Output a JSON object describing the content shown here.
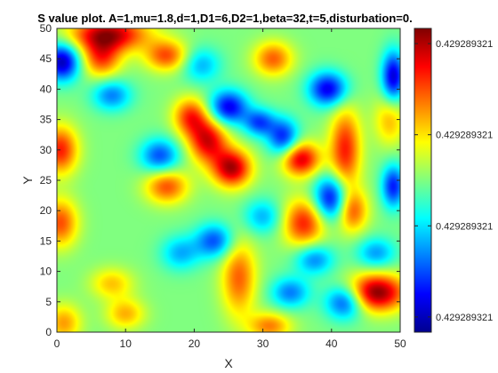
{
  "chart_data": {
    "type": "heatmap",
    "title": "S value plot. A=1,mu=1.8,d=1,D1=6,D2=1,beta=32,t=5,disturbation=0.",
    "xlabel": "X",
    "ylabel": "Y",
    "xlim": [
      0,
      50
    ],
    "ylim": [
      0,
      50
    ],
    "xticks": [
      0,
      10,
      20,
      30,
      40,
      50
    ],
    "yticks": [
      0,
      5,
      10,
      15,
      20,
      25,
      30,
      35,
      40,
      45,
      50
    ],
    "colormap": "jet",
    "grid": false,
    "colorbar": {
      "location": "right",
      "tick_labels": [
        "0.429289321",
        "0.429289321",
        "0.429289321",
        "0.429289321"
      ],
      "tick_levels": [
        0.95,
        0.65,
        0.35,
        0.05
      ]
    },
    "features": [
      {
        "x": 46.5,
        "y": 6.5,
        "level": 1.0,
        "sx": 3.0,
        "sy": 2.2
      },
      {
        "x": 25.5,
        "y": 27.0,
        "level": 0.95,
        "sx": 2.0,
        "sy": 2.2
      },
      {
        "x": 22.0,
        "y": 31.5,
        "level": 0.9,
        "sx": 2.0,
        "sy": 2.6
      },
      {
        "x": 19.5,
        "y": 35.5,
        "level": 0.82,
        "sx": 1.8,
        "sy": 2.2
      },
      {
        "x": 35.5,
        "y": 28.5,
        "level": 0.92,
        "sx": 2.0,
        "sy": 2.0
      },
      {
        "x": 42.0,
        "y": 30.0,
        "level": 0.85,
        "sx": 1.6,
        "sy": 4.8
      },
      {
        "x": 43.0,
        "y": 20.0,
        "level": 0.8,
        "sx": 1.6,
        "sy": 2.5
      },
      {
        "x": 36.0,
        "y": 18.0,
        "level": 0.85,
        "sx": 2.2,
        "sy": 2.8
      },
      {
        "x": 7.5,
        "y": 49.0,
        "level": 0.95,
        "sx": 4.0,
        "sy": 2.0
      },
      {
        "x": 0.5,
        "y": 30.0,
        "level": 0.85,
        "sx": 1.8,
        "sy": 2.8
      },
      {
        "x": 0.5,
        "y": 18.0,
        "level": 0.8,
        "sx": 1.8,
        "sy": 2.8
      },
      {
        "x": 6.5,
        "y": 45.0,
        "level": 0.8,
        "sx": 2.0,
        "sy": 2.2
      },
      {
        "x": 16.0,
        "y": 45.5,
        "level": 0.8,
        "sx": 2.2,
        "sy": 1.8
      },
      {
        "x": 16.0,
        "y": 24.0,
        "level": 0.8,
        "sx": 2.2,
        "sy": 2.0
      },
      {
        "x": 26.5,
        "y": 9.0,
        "level": 0.78,
        "sx": 1.8,
        "sy": 4.5
      },
      {
        "x": 31.5,
        "y": 45.0,
        "level": 0.78,
        "sx": 2.0,
        "sy": 2.0
      },
      {
        "x": 31.0,
        "y": 1.0,
        "level": 0.75,
        "sx": 2.2,
        "sy": 1.6
      },
      {
        "x": 1.0,
        "y": 1.5,
        "level": 0.72,
        "sx": 1.8,
        "sy": 2.2
      },
      {
        "x": 10.0,
        "y": 3.0,
        "level": 0.7,
        "sx": 2.0,
        "sy": 1.8
      },
      {
        "x": 8.0,
        "y": 8.0,
        "level": 0.68,
        "sx": 2.2,
        "sy": 1.8
      },
      {
        "x": 48.5,
        "y": 35.0,
        "level": 0.7,
        "sx": 1.6,
        "sy": 3.0
      },
      {
        "x": 0.8,
        "y": 44.5,
        "level": 0.05,
        "sx": 1.8,
        "sy": 2.2
      },
      {
        "x": 25.0,
        "y": 37.0,
        "level": 0.1,
        "sx": 2.0,
        "sy": 2.0
      },
      {
        "x": 39.5,
        "y": 40.0,
        "level": 0.1,
        "sx": 2.0,
        "sy": 2.0
      },
      {
        "x": 40.0,
        "y": 22.0,
        "level": 0.08,
        "sx": 1.8,
        "sy": 2.6
      },
      {
        "x": 49.0,
        "y": 42.0,
        "level": 0.08,
        "sx": 1.2,
        "sy": 3.0
      },
      {
        "x": 49.0,
        "y": 24.0,
        "level": 0.15,
        "sx": 1.2,
        "sy": 2.5
      },
      {
        "x": 42.0,
        "y": 5.0,
        "level": 0.15,
        "sx": 2.0,
        "sy": 2.0
      },
      {
        "x": 15.0,
        "y": 29.0,
        "level": 0.2,
        "sx": 2.0,
        "sy": 2.0
      },
      {
        "x": 23.0,
        "y": 15.0,
        "level": 0.2,
        "sx": 2.0,
        "sy": 2.0
      },
      {
        "x": 33.0,
        "y": 32.0,
        "level": 0.15,
        "sx": 1.6,
        "sy": 2.2
      },
      {
        "x": 29.5,
        "y": 34.5,
        "level": 0.2,
        "sx": 1.6,
        "sy": 1.6
      },
      {
        "x": 8.0,
        "y": 39.0,
        "level": 0.25,
        "sx": 2.0,
        "sy": 1.8
      },
      {
        "x": 37.5,
        "y": 12.0,
        "level": 0.25,
        "sx": 2.0,
        "sy": 1.8
      },
      {
        "x": 34.0,
        "y": 6.5,
        "level": 0.25,
        "sx": 2.0,
        "sy": 1.8
      },
      {
        "x": 18.0,
        "y": 13.0,
        "level": 0.3,
        "sx": 2.0,
        "sy": 2.0
      },
      {
        "x": 30.0,
        "y": 19.0,
        "level": 0.3,
        "sx": 2.0,
        "sy": 2.0
      },
      {
        "x": 21.0,
        "y": 44.0,
        "level": 0.3,
        "sx": 2.0,
        "sy": 2.0
      },
      {
        "x": 46.5,
        "y": 13.0,
        "level": 0.28,
        "sx": 2.0,
        "sy": 1.8
      }
    ]
  }
}
